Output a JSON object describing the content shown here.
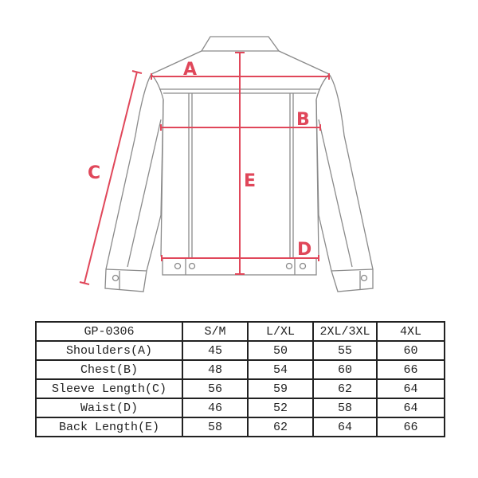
{
  "diagram": {
    "labels": {
      "a": "A",
      "b": "B",
      "c": "C",
      "d": "D",
      "e": "E"
    },
    "colors": {
      "measure": "#e0475a",
      "outline": "#8a8a8a"
    }
  },
  "size_table": {
    "headers": [
      "GP-0306",
      "S/M",
      "L/XL",
      "2XL/3XL",
      "4XL"
    ],
    "rows": [
      {
        "label": "Shoulders(A)",
        "values": [
          "45",
          "50",
          "55",
          "60"
        ]
      },
      {
        "label": "Chest(B)",
        "values": [
          "48",
          "54",
          "60",
          "66"
        ]
      },
      {
        "label": "Sleeve Length(C)",
        "values": [
          "56",
          "59",
          "62",
          "64"
        ]
      },
      {
        "label": "Waist(D)",
        "values": [
          "46",
          "52",
          "58",
          "64"
        ]
      },
      {
        "label": "Back Length(E)",
        "values": [
          "58",
          "62",
          "64",
          "66"
        ]
      }
    ]
  }
}
